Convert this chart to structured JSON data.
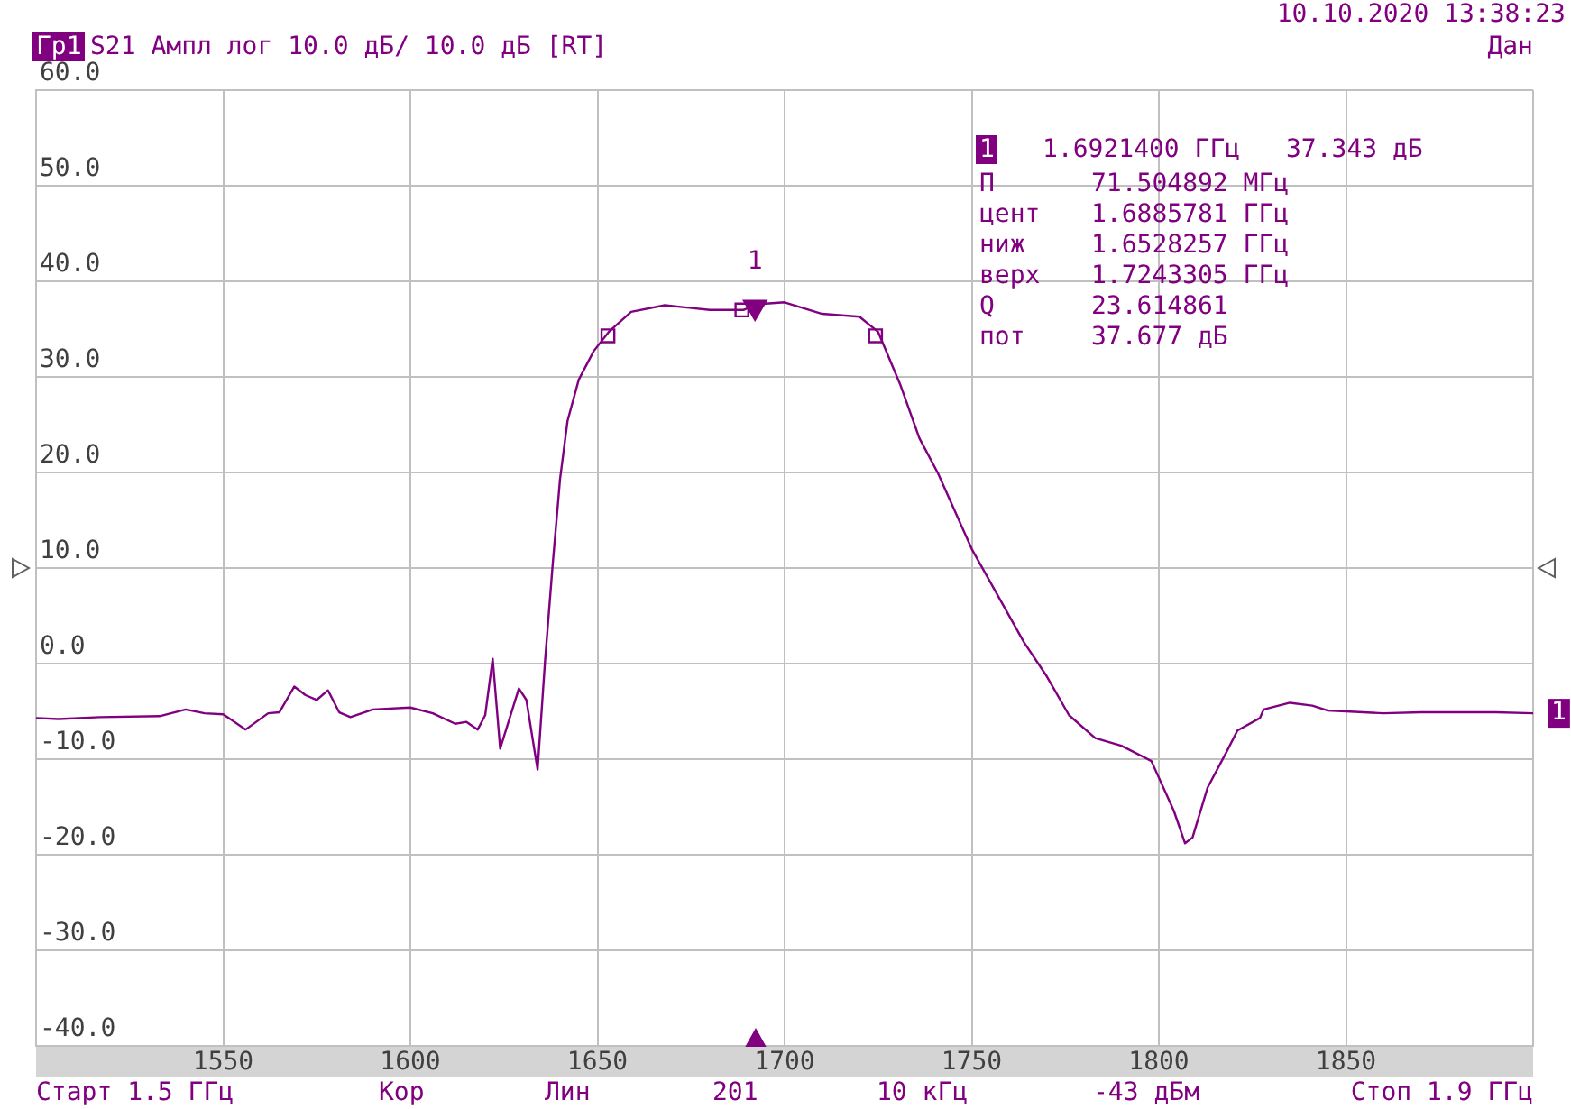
{
  "chart_data": {
    "type": "line",
    "title": "S21 Ампл лог 10.0 дБ/ 10.0 дБ [RT]",
    "xlim": [
      1500,
      1900
    ],
    "xticks": [
      {
        "value": 1500,
        "label": null
      },
      1550,
      1600,
      1650,
      1700,
      1750,
      1800,
      1850,
      {
        "value": 1900,
        "label": null
      }
    ],
    "ylim": [
      -40,
      60
    ],
    "yticks": [
      {
        "value": -40,
        "label": "-40.0"
      },
      {
        "value": -30,
        "label": "-30.0"
      },
      {
        "value": -20,
        "label": "-20.0"
      },
      {
        "value": -10,
        "label": "-10.0"
      },
      {
        "value": 0,
        "label": "0.0"
      },
      {
        "value": 10,
        "label": "10.0"
      },
      {
        "value": 20,
        "label": "20.0"
      },
      {
        "value": 30,
        "label": "30.0"
      },
      {
        "value": 40,
        "label": "40.0"
      },
      {
        "value": 50,
        "label": "50.0"
      },
      {
        "value": 60,
        "label": "60.0"
      }
    ],
    "grid": true,
    "legend": false,
    "series": [
      {
        "color": "#800080",
        "marker": "none",
        "x": [
          1500,
          1506,
          1517,
          1533,
          1540,
          1545,
          1550,
          1556,
          1562,
          1565,
          1569,
          1572,
          1575,
          1578,
          1581,
          1584,
          1590,
          1600,
          1606,
          1612,
          1615,
          1618,
          1620,
          1622,
          1624,
          1629,
          1631,
          1634,
          1636,
          1638,
          1640,
          1642,
          1645,
          1649,
          1653,
          1659,
          1668,
          1680,
          1689,
          1692.6,
          1700,
          1710,
          1720,
          1725,
          1731,
          1736,
          1741,
          1750,
          1764,
          1770,
          1776,
          1783,
          1790,
          1798,
          1804,
          1807,
          1809,
          1813,
          1818,
          1821,
          1827,
          1828,
          1835,
          1841,
          1845,
          1850,
          1860,
          1870,
          1881,
          1890,
          1900
        ],
        "values": [
          -5.7,
          -5.8,
          -5.6,
          -5.5,
          -4.8,
          -5.2,
          -5.3,
          -6.9,
          -5.2,
          -5.1,
          -2.4,
          -3.3,
          -3.8,
          -2.8,
          -5.1,
          -5.6,
          -4.8,
          -4.6,
          -5.2,
          -6.3,
          -6.1,
          -6.9,
          -5.4,
          0.5,
          -8.9,
          -2.6,
          -3.8,
          -11.1,
          0.3,
          10.2,
          19.3,
          25.4,
          29.7,
          32.7,
          34.7,
          36.8,
          37.5,
          37.0,
          37.0,
          37.6,
          37.8,
          36.6,
          36.3,
          34.7,
          29.1,
          23.6,
          19.9,
          12.0,
          2.2,
          -1.3,
          -5.4,
          -7.8,
          -8.6,
          -10.2,
          -15.4,
          -18.8,
          -18.2,
          -13.0,
          -9.3,
          -7.0,
          -5.7,
          -4.8,
          -4.1,
          -4.4,
          -4.9,
          -5.0,
          -5.2,
          -5.1,
          -5.1,
          -5.1,
          -5.2
        ]
      },
      {
        "type": "scatter",
        "color": "#800080",
        "marker": "square",
        "x": [
          1652.8,
          1688.6,
          1724.3
        ],
        "values": [
          34.3,
          37.0,
          34.3
        ]
      },
      {
        "type": "scatter",
        "color": "#800080",
        "marker": "triangle",
        "x": [
          1692.1
        ],
        "values": [
          37.3
        ]
      }
    ],
    "annotations": [
      "Гр1",
      "10.10.2020 13:38:23",
      "Дан",
      "1",
      "1.6921400 ГГц",
      "37.343 дБ",
      "П",
      "71.504892 МГц",
      "цент",
      "1.6885781 ГГц",
      "ниж",
      "1.6528257 ГГц",
      "верх",
      "1.7243305 ГГц",
      "Q",
      "23.614861",
      "пот",
      "37.677 дБ",
      "Старт 1.5 ГГц",
      "Кор",
      "Лин",
      "201",
      "10 кГц",
      "-43 дБм",
      "Стоп 1.9 ГГц",
      {
        "text": "1",
        "x": 1900,
        "y": -5.2
      },
      {
        "text": "1",
        "x": 1692.1,
        "y": 37.3
      }
    ]
  }
}
